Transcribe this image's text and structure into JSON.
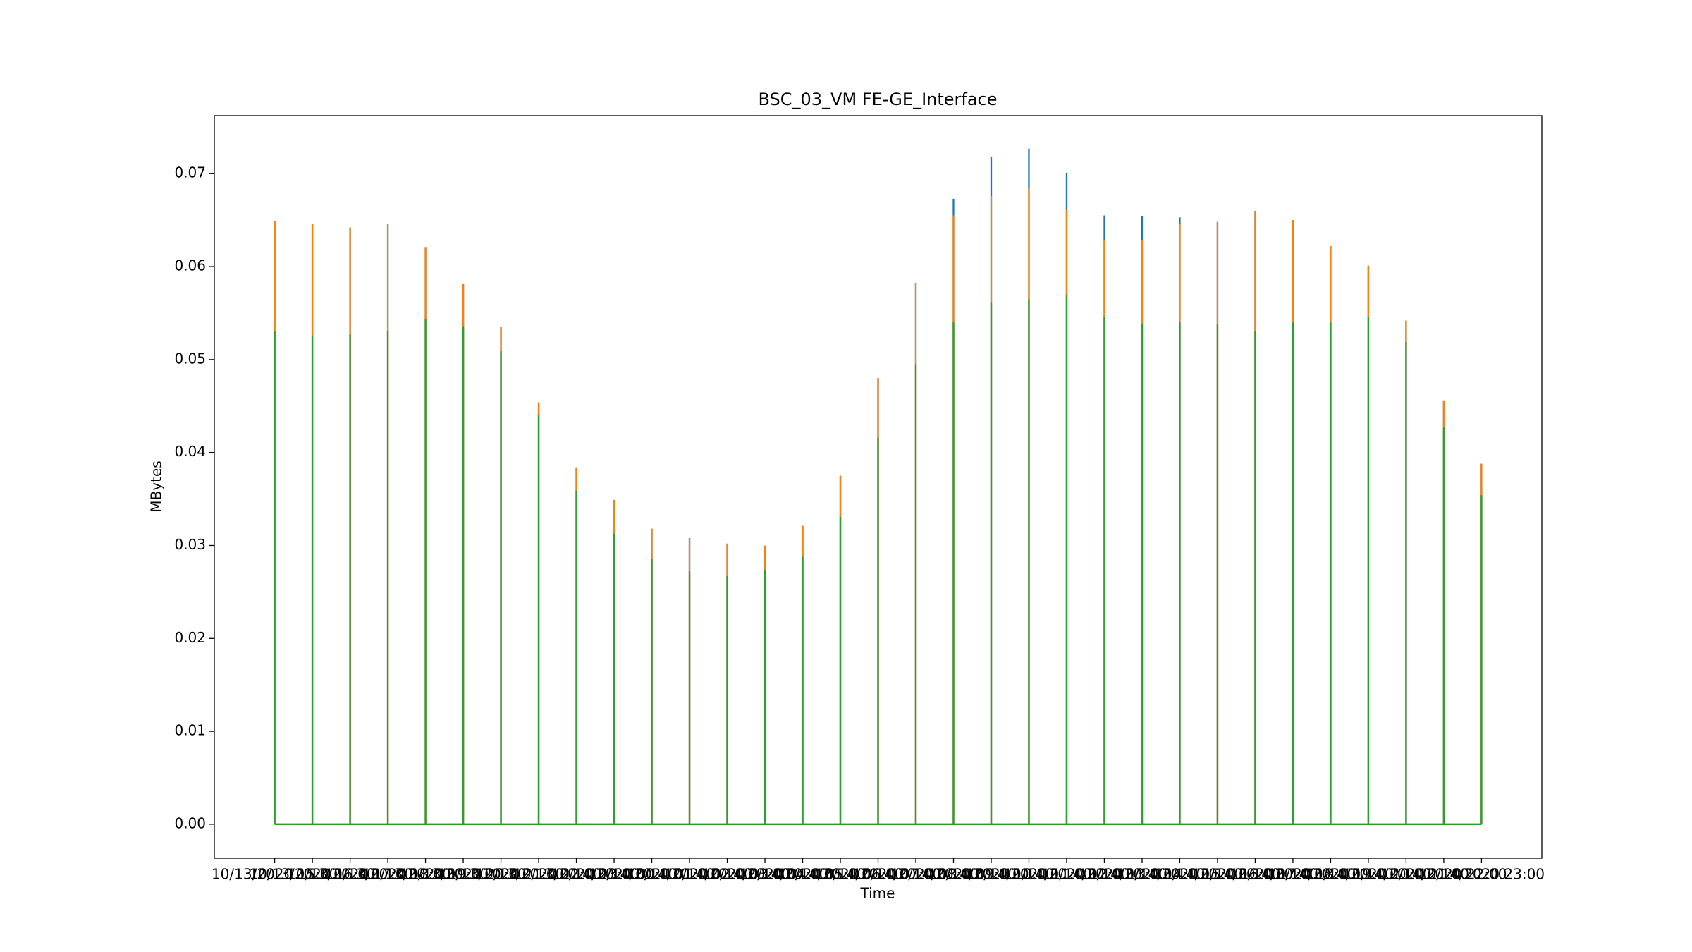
{
  "chart_data": {
    "type": "spike",
    "title": "BSC_03_VM FE-GE_Interface",
    "x_label": "Time",
    "y_label": "MBytes",
    "categories": [
      "10/13/2020 15:00",
      "10/13/2020 16:00",
      "10/13/2020 17:00",
      "10/13/2020 18:00",
      "10/13/2020 19:00",
      "10/13/2020 20:00",
      "10/13/2020 21:00",
      "10/13/2020 22:00",
      "10/13/2020 23:00",
      "10/14/2020 00:00",
      "10/14/2020 01:00",
      "10/14/2020 02:00",
      "10/14/2020 03:00",
      "10/14/2020 04:00",
      "10/14/2020 05:00",
      "10/14/2020 06:00",
      "10/14/2020 07:00",
      "10/14/2020 08:00",
      "10/14/2020 09:00",
      "10/14/2020 10:00",
      "10/14/2020 11:00",
      "10/14/2020 12:00",
      "10/14/2020 13:00",
      "10/14/2020 14:00",
      "10/14/2020 15:00",
      "10/14/2020 16:00",
      "10/14/2020 17:00",
      "10/14/2020 18:00",
      "10/14/2020 19:00",
      "10/14/2020 20:00",
      "10/14/2020 21:00",
      "10/14/2020 22:00",
      "10/14/2020 23:00"
    ],
    "series": [
      {
        "color": "#1f77b4",
        "values": [
          0.0649,
          0.0646,
          0.0642,
          0.0646,
          0.0621,
          0.0581,
          0.0535,
          0.0454,
          0.0384,
          0.0349,
          0.0318,
          0.0308,
          0.0302,
          0.03,
          0.0321,
          0.0375,
          0.048,
          0.0582,
          0.0673,
          0.0718,
          0.0727,
          0.0701,
          0.0655,
          0.0654,
          0.0653,
          0.0648,
          0.066,
          0.065,
          0.0622,
          0.0601,
          0.0542,
          0.0456,
          0.0388
        ]
      },
      {
        "color": "#ff7f0e",
        "values": [
          0.0649,
          0.0646,
          0.0642,
          0.0646,
          0.0621,
          0.0581,
          0.0535,
          0.0454,
          0.0384,
          0.0349,
          0.0318,
          0.0308,
          0.0302,
          0.03,
          0.0321,
          0.0375,
          0.048,
          0.0582,
          0.0655,
          0.0676,
          0.0684,
          0.0661,
          0.0628,
          0.0628,
          0.0646,
          0.0648,
          0.066,
          0.065,
          0.0622,
          0.0601,
          0.0542,
          0.0456,
          0.0388
        ]
      },
      {
        "color": "#2ca02c",
        "values": [
          0.0531,
          0.0526,
          0.0528,
          0.0531,
          0.0544,
          0.0536,
          0.0509,
          0.044,
          0.0359,
          0.0313,
          0.0286,
          0.0272,
          0.0267,
          0.0274,
          0.0288,
          0.0331,
          0.0416,
          0.0495,
          0.054,
          0.0562,
          0.0565,
          0.0569,
          0.0546,
          0.0539,
          0.0541,
          0.0538,
          0.0531,
          0.054,
          0.0541,
          0.0546,
          0.0519,
          0.0427,
          0.0354
        ]
      }
    ],
    "ylim": [
      -0.00365,
      0.07624
    ],
    "yticks": [
      {
        "value": 0,
        "label": "0.00"
      },
      {
        "value": 0.01,
        "label": "0.01"
      },
      {
        "value": 0.02,
        "label": "0.02"
      },
      {
        "value": 0.03,
        "label": "0.03"
      },
      {
        "value": 0.04,
        "label": "0.04"
      },
      {
        "value": 0.05,
        "label": "0.05"
      },
      {
        "value": 0.06,
        "label": "0.06"
      },
      {
        "value": 0.07,
        "label": "0.07"
      }
    ],
    "grid": false
  }
}
